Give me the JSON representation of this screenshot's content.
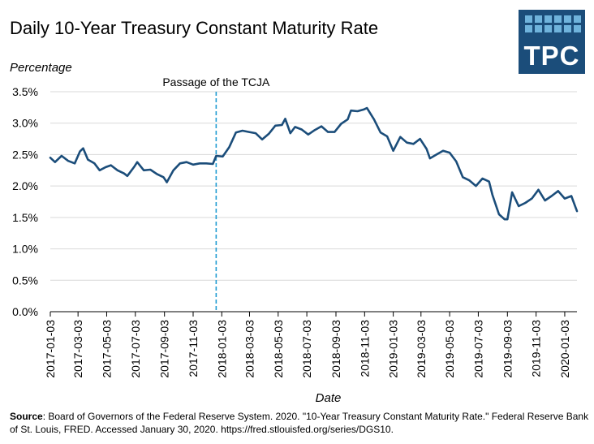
{
  "title": "Daily 10-Year Treasury Constant Maturity Rate",
  "logo": {
    "text": "TPC",
    "icon": "tpc-logo"
  },
  "source": {
    "label": "Source",
    "text": ": Board of Governors of the Federal Reserve System. 2020. \"10-Year Treasury Constant Maturity Rate.\" Federal Reserve Bank of St. Louis, FRED. Accessed January 30, 2020. https://fred.stlouisfed.org/series/DGS10."
  },
  "colors": {
    "line": "#1b4d7a",
    "annotation": "#1f9bd1",
    "grid": "#d9d9d9"
  },
  "chart_data": {
    "type": "line",
    "title": "Daily 10-Year Treasury Constant Maturity Rate",
    "ylabel": "Percentage",
    "xlabel": "Date",
    "ylim": [
      0,
      3.5
    ],
    "xlim": [
      "2017-01-03",
      "2020-01-29"
    ],
    "yticks": [
      0,
      0.5,
      1.0,
      1.5,
      2.0,
      2.5,
      3.0,
      3.5
    ],
    "ytick_labels": [
      "0.0%",
      "0.5%",
      "1.0%",
      "1.5%",
      "2.0%",
      "2.5%",
      "3.0%",
      "3.5%"
    ],
    "xticks": [
      "2017-01-03",
      "2017-03-03",
      "2017-05-03",
      "2017-07-03",
      "2017-09-03",
      "2017-11-03",
      "2018-01-03",
      "2018-03-03",
      "2018-05-03",
      "2018-07-03",
      "2018-09-03",
      "2018-11-03",
      "2019-01-03",
      "2019-03-03",
      "2019-05-03",
      "2019-07-03",
      "2019-09-03",
      "2019-11-03",
      "2020-01-03"
    ],
    "grid": true,
    "annotation": {
      "label": "Passage of the TCJA",
      "x": "2017-12-22",
      "style": "dashed vertical line"
    },
    "series": [
      {
        "x": [
          "2017-01-03",
          "2017-01-13",
          "2017-01-27",
          "2017-02-10",
          "2017-02-24",
          "2017-03-07",
          "2017-03-14",
          "2017-03-24",
          "2017-04-07",
          "2017-04-18",
          "2017-05-01",
          "2017-05-12",
          "2017-05-26",
          "2017-06-09",
          "2017-06-16",
          "2017-06-30",
          "2017-07-07",
          "2017-07-21",
          "2017-08-04",
          "2017-08-18",
          "2017-09-01",
          "2017-09-08",
          "2017-09-22",
          "2017-10-06",
          "2017-10-20",
          "2017-11-03",
          "2017-11-17",
          "2017-12-01",
          "2017-12-15",
          "2017-12-22",
          "2018-01-05",
          "2018-01-19",
          "2018-02-02",
          "2018-02-16",
          "2018-03-02",
          "2018-03-16",
          "2018-03-30",
          "2018-04-13",
          "2018-04-27",
          "2018-05-11",
          "2018-05-18",
          "2018-05-29",
          "2018-06-08",
          "2018-06-22",
          "2018-07-06",
          "2018-07-20",
          "2018-08-03",
          "2018-08-17",
          "2018-08-31",
          "2018-09-14",
          "2018-09-28",
          "2018-10-05",
          "2018-10-19",
          "2018-11-02",
          "2018-11-08",
          "2018-11-23",
          "2018-12-07",
          "2018-12-21",
          "2019-01-03",
          "2019-01-18",
          "2019-02-01",
          "2019-02-15",
          "2019-03-01",
          "2019-03-15",
          "2019-03-22",
          "2019-04-05",
          "2019-04-19",
          "2019-05-03",
          "2019-05-17",
          "2019-05-31",
          "2019-06-14",
          "2019-06-28",
          "2019-07-12",
          "2019-07-26",
          "2019-08-02",
          "2019-08-16",
          "2019-08-28",
          "2019-09-03",
          "2019-09-13",
          "2019-09-27",
          "2019-10-11",
          "2019-10-25",
          "2019-11-08",
          "2019-11-22",
          "2019-12-06",
          "2019-12-20",
          "2020-01-03",
          "2020-01-17",
          "2020-01-29"
        ],
        "y": [
          2.45,
          2.38,
          2.48,
          2.4,
          2.36,
          2.55,
          2.6,
          2.42,
          2.36,
          2.25,
          2.3,
          2.33,
          2.25,
          2.2,
          2.16,
          2.3,
          2.38,
          2.25,
          2.26,
          2.19,
          2.14,
          2.06,
          2.25,
          2.36,
          2.38,
          2.34,
          2.36,
          2.36,
          2.35,
          2.48,
          2.47,
          2.62,
          2.85,
          2.88,
          2.86,
          2.84,
          2.74,
          2.83,
          2.96,
          2.97,
          3.07,
          2.84,
          2.94,
          2.9,
          2.82,
          2.89,
          2.95,
          2.86,
          2.86,
          2.99,
          3.06,
          3.2,
          3.19,
          3.22,
          3.24,
          3.06,
          2.85,
          2.79,
          2.56,
          2.78,
          2.69,
          2.67,
          2.75,
          2.59,
          2.44,
          2.5,
          2.56,
          2.53,
          2.39,
          2.14,
          2.09,
          2.0,
          2.12,
          2.07,
          1.86,
          1.55,
          1.47,
          1.47,
          1.9,
          1.68,
          1.73,
          1.8,
          1.94,
          1.77,
          1.84,
          1.92,
          1.8,
          1.84,
          1.6
        ]
      }
    ]
  }
}
